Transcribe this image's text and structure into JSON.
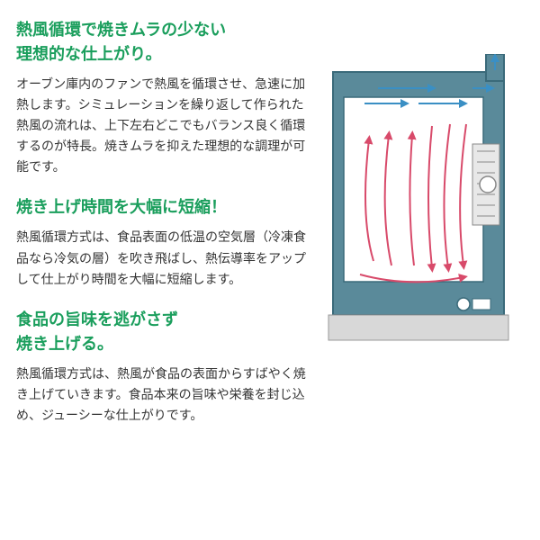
{
  "sections": [
    {
      "heading": "熱風循環で焼きムラの少ない\n理想的な仕上がり。",
      "body": "オーブン庫内のファンで熱風を循環させ、急速に加熱します。シミュレーションを繰り返して作られた熱風の流れは、上下左右どこでもバランス良く循環するのが特長。焼きムラを抑えた理想的な調理が可能です。"
    },
    {
      "heading": "焼き上げ時間を大幅に短縮！",
      "body": "熱風循環方式は、食品表面の低温の空気層（冷凍食品なら冷気の層）を吹き飛ばし、熱伝導率をアップして仕上がり時間を大幅に短縮します。"
    },
    {
      "heading": "食品の旨味を逃がさず\n焼き上げる。",
      "body": "熱風循環方式は、熱風が食品の表面からすばやく焼き上げていきます。食品本来の旨味や栄養を封じ込め、ジューシーな仕上がりです。"
    }
  ],
  "diagram": {
    "outer_color": "#5a8a9a",
    "stroke_color": "#3a6a7a",
    "inner_bg": "#ffffff",
    "intake_arrow_color": "#3a8fc4",
    "hot_arrow_color": "#d84a6a",
    "base_color": "#c0c0c0",
    "line_width": 1.5
  },
  "colors": {
    "heading": "#1a9e5c",
    "body": "#333333",
    "background": "#ffffff"
  }
}
